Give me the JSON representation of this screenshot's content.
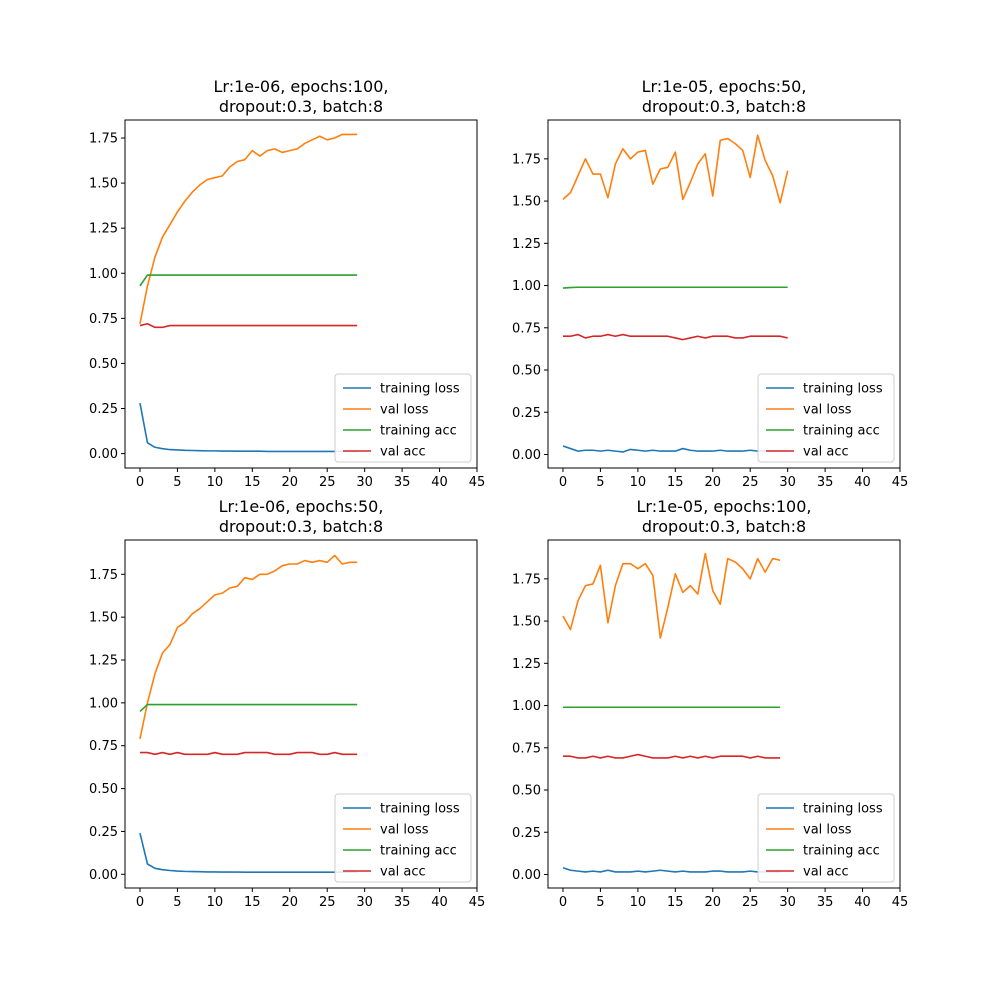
{
  "chart_data": [
    {
      "type": "line",
      "title": [
        "Lr:1e-06, epochs:100,",
        "dropout:0.3, batch:8"
      ],
      "xlim": [
        -2,
        45
      ],
      "ylim": [
        -0.08,
        1.85
      ],
      "xticks": [
        "0",
        "5",
        "10",
        "15",
        "20",
        "25",
        "30",
        "35",
        "40",
        "45"
      ],
      "yticks": [
        "0.00",
        "0.25",
        "0.50",
        "0.75",
        "1.00",
        "1.25",
        "1.50",
        "1.75"
      ],
      "legend_position": "lower right",
      "grid": false,
      "x": [
        0,
        1,
        2,
        3,
        4,
        5,
        6,
        7,
        8,
        9,
        10,
        11,
        12,
        13,
        14,
        15,
        16,
        17,
        18,
        19,
        20,
        21,
        22,
        23,
        24,
        25,
        26,
        27,
        28,
        29
      ],
      "series": [
        {
          "name": "training loss",
          "color": "#1f77b4",
          "values": [
            0.28,
            0.06,
            0.035,
            0.027,
            0.022,
            0.02,
            0.018,
            0.017,
            0.016,
            0.015,
            0.015,
            0.014,
            0.014,
            0.013,
            0.013,
            0.013,
            0.013,
            0.012,
            0.012,
            0.012,
            0.012,
            0.012,
            0.012,
            0.012,
            0.012,
            0.012,
            0.012,
            0.012,
            0.012,
            0.012
          ]
        },
        {
          "name": "val loss",
          "color": "#ff7f0e",
          "values": [
            0.72,
            0.93,
            1.09,
            1.2,
            1.27,
            1.34,
            1.4,
            1.45,
            1.49,
            1.52,
            1.53,
            1.54,
            1.59,
            1.62,
            1.63,
            1.68,
            1.65,
            1.68,
            1.69,
            1.67,
            1.68,
            1.69,
            1.72,
            1.74,
            1.76,
            1.74,
            1.75,
            1.77,
            1.77,
            1.77
          ]
        },
        {
          "name": "training acc",
          "color": "#2ca02c",
          "values": [
            0.93,
            0.99,
            0.99,
            0.99,
            0.99,
            0.99,
            0.99,
            0.99,
            0.99,
            0.99,
            0.99,
            0.99,
            0.99,
            0.99,
            0.99,
            0.99,
            0.99,
            0.99,
            0.99,
            0.99,
            0.99,
            0.99,
            0.99,
            0.99,
            0.99,
            0.99,
            0.99,
            0.99,
            0.99,
            0.99
          ]
        },
        {
          "name": "val acc",
          "color": "#d62728",
          "values": [
            0.71,
            0.72,
            0.7,
            0.7,
            0.71,
            0.71,
            0.71,
            0.71,
            0.71,
            0.71,
            0.71,
            0.71,
            0.71,
            0.71,
            0.71,
            0.71,
            0.71,
            0.71,
            0.71,
            0.71,
            0.71,
            0.71,
            0.71,
            0.71,
            0.71,
            0.71,
            0.71,
            0.71,
            0.71,
            0.71
          ]
        }
      ]
    },
    {
      "type": "line",
      "title": [
        "Lr:1e-05, epochs:50,",
        "dropout:0.3, batch:8"
      ],
      "xlim": [
        -2,
        45
      ],
      "ylim": [
        -0.08,
        1.98
      ],
      "xticks": [
        "0",
        "5",
        "10",
        "15",
        "20",
        "25",
        "30",
        "35",
        "40",
        "45"
      ],
      "yticks": [
        "0.00",
        "0.25",
        "0.50",
        "0.75",
        "1.00",
        "1.25",
        "1.50",
        "1.75"
      ],
      "legend_position": "lower right",
      "grid": false,
      "x": [
        0,
        1,
        2,
        3,
        4,
        5,
        6,
        7,
        8,
        9,
        10,
        11,
        12,
        13,
        14,
        15,
        16,
        17,
        18,
        19,
        20,
        21,
        22,
        23,
        24,
        25,
        26,
        27,
        28,
        29,
        30
      ],
      "series": [
        {
          "name": "training loss",
          "color": "#1f77b4",
          "values": [
            0.05,
            0.035,
            0.02,
            0.025,
            0.025,
            0.02,
            0.025,
            0.02,
            0.015,
            0.03,
            0.025,
            0.02,
            0.025,
            0.02,
            0.02,
            0.02,
            0.035,
            0.025,
            0.02,
            0.02,
            0.02,
            0.025,
            0.02,
            0.02,
            0.02,
            0.025,
            0.02,
            0.02,
            0.02,
            0.02,
            0.02
          ]
        },
        {
          "name": "val loss",
          "color": "#ff7f0e",
          "values": [
            1.51,
            1.55,
            1.65,
            1.75,
            1.66,
            1.66,
            1.52,
            1.72,
            1.81,
            1.75,
            1.79,
            1.8,
            1.6,
            1.69,
            1.7,
            1.79,
            1.51,
            1.61,
            1.72,
            1.78,
            1.53,
            1.86,
            1.87,
            1.84,
            1.8,
            1.64,
            1.89,
            1.74,
            1.65,
            1.49,
            1.68
          ]
        },
        {
          "name": "training acc",
          "color": "#2ca02c",
          "values": [
            0.985,
            0.988,
            0.99,
            0.99,
            0.99,
            0.99,
            0.99,
            0.99,
            0.99,
            0.99,
            0.99,
            0.99,
            0.99,
            0.99,
            0.99,
            0.99,
            0.99,
            0.99,
            0.99,
            0.99,
            0.99,
            0.99,
            0.99,
            0.99,
            0.99,
            0.99,
            0.99,
            0.99,
            0.99,
            0.99,
            0.99
          ]
        },
        {
          "name": "val acc",
          "color": "#d62728",
          "values": [
            0.7,
            0.7,
            0.71,
            0.69,
            0.7,
            0.7,
            0.71,
            0.7,
            0.71,
            0.7,
            0.7,
            0.7,
            0.7,
            0.7,
            0.7,
            0.69,
            0.68,
            0.69,
            0.7,
            0.69,
            0.7,
            0.7,
            0.7,
            0.69,
            0.69,
            0.7,
            0.7,
            0.7,
            0.7,
            0.7,
            0.69
          ]
        }
      ]
    },
    {
      "type": "line",
      "title": [
        "Lr:1e-06, epochs:50,",
        "dropout:0.3, batch:8"
      ],
      "xlim": [
        -2,
        45
      ],
      "ylim": [
        -0.08,
        1.95
      ],
      "xticks": [
        "0",
        "5",
        "10",
        "15",
        "20",
        "25",
        "30",
        "35",
        "40",
        "45"
      ],
      "yticks": [
        "0.00",
        "0.25",
        "0.50",
        "0.75",
        "1.00",
        "1.25",
        "1.50",
        "1.75"
      ],
      "legend_position": "lower right",
      "grid": false,
      "x": [
        0,
        1,
        2,
        3,
        4,
        5,
        6,
        7,
        8,
        9,
        10,
        11,
        12,
        13,
        14,
        15,
        16,
        17,
        18,
        19,
        20,
        21,
        22,
        23,
        24,
        25,
        26,
        27,
        28,
        29
      ],
      "series": [
        {
          "name": "training loss",
          "color": "#1f77b4",
          "values": [
            0.24,
            0.06,
            0.035,
            0.027,
            0.022,
            0.019,
            0.017,
            0.016,
            0.015,
            0.014,
            0.014,
            0.013,
            0.013,
            0.013,
            0.012,
            0.012,
            0.012,
            0.012,
            0.012,
            0.012,
            0.012,
            0.012,
            0.012,
            0.012,
            0.012,
            0.012,
            0.012,
            0.012,
            0.012,
            0.012
          ]
        },
        {
          "name": "val loss",
          "color": "#ff7f0e",
          "values": [
            0.79,
            1.0,
            1.17,
            1.29,
            1.34,
            1.44,
            1.47,
            1.52,
            1.55,
            1.59,
            1.63,
            1.64,
            1.67,
            1.68,
            1.73,
            1.72,
            1.75,
            1.75,
            1.77,
            1.8,
            1.81,
            1.81,
            1.83,
            1.82,
            1.83,
            1.82,
            1.86,
            1.81,
            1.82,
            1.82
          ]
        },
        {
          "name": "training acc",
          "color": "#2ca02c",
          "values": [
            0.95,
            0.99,
            0.99,
            0.99,
            0.99,
            0.99,
            0.99,
            0.99,
            0.99,
            0.99,
            0.99,
            0.99,
            0.99,
            0.99,
            0.99,
            0.99,
            0.99,
            0.99,
            0.99,
            0.99,
            0.99,
            0.99,
            0.99,
            0.99,
            0.99,
            0.99,
            0.99,
            0.99,
            0.99,
            0.99
          ]
        },
        {
          "name": "val acc",
          "color": "#d62728",
          "values": [
            0.71,
            0.71,
            0.7,
            0.71,
            0.7,
            0.71,
            0.7,
            0.7,
            0.7,
            0.7,
            0.71,
            0.7,
            0.7,
            0.7,
            0.71,
            0.71,
            0.71,
            0.71,
            0.7,
            0.7,
            0.7,
            0.71,
            0.71,
            0.71,
            0.7,
            0.7,
            0.71,
            0.7,
            0.7,
            0.7
          ]
        }
      ]
    },
    {
      "type": "line",
      "title": [
        "Lr:1e-05, epochs:100,",
        "dropout:0.3, batch:8"
      ],
      "xlim": [
        -2,
        45
      ],
      "ylim": [
        -0.08,
        1.98
      ],
      "xticks": [
        "0",
        "5",
        "10",
        "15",
        "20",
        "25",
        "30",
        "35",
        "40",
        "45"
      ],
      "yticks": [
        "0.00",
        "0.25",
        "0.50",
        "0.75",
        "1.00",
        "1.25",
        "1.50",
        "1.75"
      ],
      "legend_position": "lower right",
      "grid": false,
      "x": [
        0,
        1,
        2,
        3,
        4,
        5,
        6,
        7,
        8,
        9,
        10,
        11,
        12,
        13,
        14,
        15,
        16,
        17,
        18,
        19,
        20,
        21,
        22,
        23,
        24,
        25,
        26,
        27,
        28,
        29
      ],
      "series": [
        {
          "name": "training loss",
          "color": "#1f77b4",
          "values": [
            0.04,
            0.025,
            0.02,
            0.015,
            0.02,
            0.015,
            0.025,
            0.015,
            0.015,
            0.015,
            0.02,
            0.015,
            0.02,
            0.025,
            0.02,
            0.015,
            0.02,
            0.015,
            0.015,
            0.015,
            0.02,
            0.02,
            0.015,
            0.015,
            0.015,
            0.02,
            0.015,
            0.015,
            0.015,
            0.015
          ]
        },
        {
          "name": "val loss",
          "color": "#ff7f0e",
          "values": [
            1.53,
            1.45,
            1.62,
            1.71,
            1.72,
            1.83,
            1.49,
            1.71,
            1.84,
            1.84,
            1.81,
            1.84,
            1.77,
            1.4,
            1.58,
            1.78,
            1.67,
            1.71,
            1.66,
            1.9,
            1.68,
            1.6,
            1.87,
            1.85,
            1.81,
            1.75,
            1.87,
            1.79,
            1.87,
            1.86
          ]
        },
        {
          "name": "training acc",
          "color": "#2ca02c",
          "values": [
            0.99,
            0.99,
            0.99,
            0.99,
            0.99,
            0.99,
            0.99,
            0.99,
            0.99,
            0.99,
            0.99,
            0.99,
            0.99,
            0.99,
            0.99,
            0.99,
            0.99,
            0.99,
            0.99,
            0.99,
            0.99,
            0.99,
            0.99,
            0.99,
            0.99,
            0.99,
            0.99,
            0.99,
            0.99,
            0.99
          ]
        },
        {
          "name": "val acc",
          "color": "#d62728",
          "values": [
            0.7,
            0.7,
            0.69,
            0.69,
            0.7,
            0.69,
            0.7,
            0.69,
            0.69,
            0.7,
            0.71,
            0.7,
            0.69,
            0.69,
            0.69,
            0.7,
            0.69,
            0.7,
            0.69,
            0.7,
            0.69,
            0.7,
            0.7,
            0.7,
            0.7,
            0.69,
            0.7,
            0.69,
            0.69,
            0.69
          ]
        }
      ]
    }
  ]
}
